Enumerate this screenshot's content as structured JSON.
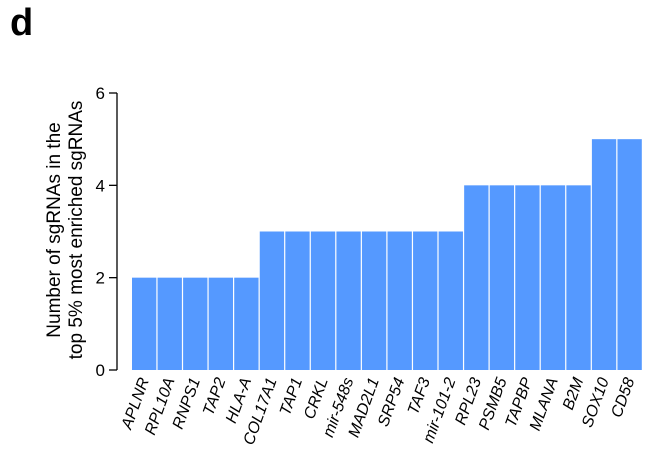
{
  "panel_label": "d",
  "chart_data": {
    "type": "bar",
    "title": "",
    "xlabel": "",
    "ylabel_line1": "Number of sgRNAs in the",
    "ylabel_line2": "top 5% most enriched sgRNAs",
    "categories": [
      "APLNR",
      "RPL10A",
      "RNPS1",
      "TAP2",
      "HLA-A",
      "COL17A1",
      "TAP1",
      "CRKL",
      "mir-548s",
      "MAD2L1",
      "SRP54",
      "TAF3",
      "mir-101-2",
      "RPL23",
      "PSMB5",
      "TAPBP",
      "MLANA",
      "B2M",
      "SOX10",
      "CD58"
    ],
    "values": [
      2,
      2,
      2,
      2,
      2,
      3,
      3,
      3,
      3,
      3,
      3,
      3,
      3,
      4,
      4,
      4,
      4,
      4,
      5,
      5
    ],
    "ylim": [
      0,
      6
    ],
    "yticks": [
      0,
      2,
      4,
      6
    ],
    "grid": false,
    "bar_color": "#5599ff"
  }
}
